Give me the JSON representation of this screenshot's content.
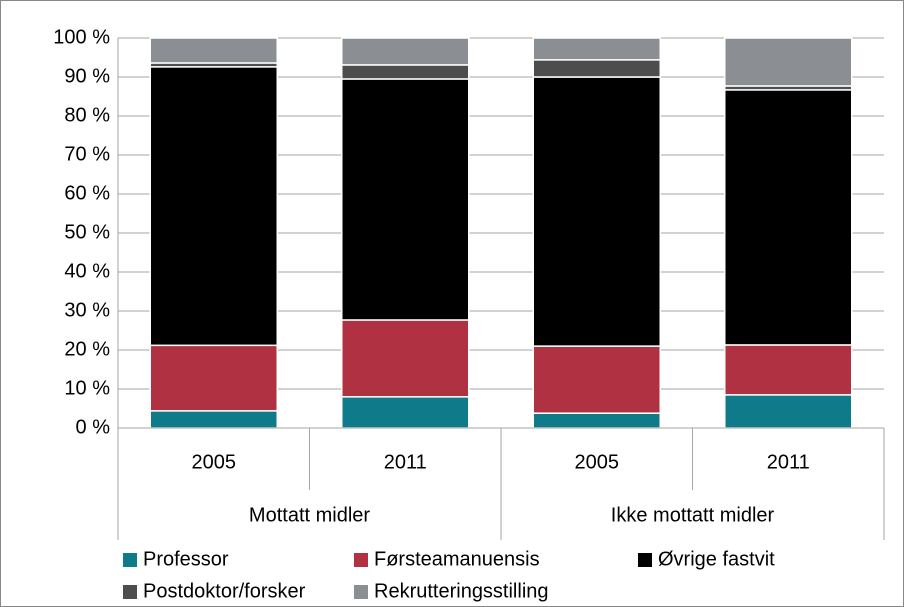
{
  "chart_data": {
    "type": "stacked_bar",
    "categories": [
      "2005",
      "2011",
      "2005",
      "2011"
    ],
    "groups": [
      {
        "label": "Mottatt midler",
        "span": 2
      },
      {
        "label": "Ikke mottatt midler",
        "span": 2
      }
    ],
    "series": [
      {
        "name": "Professor",
        "color": "#0f7b8a",
        "values": [
          4.4,
          8.0,
          3.8,
          8.5
        ]
      },
      {
        "name": "Førsteamanuensis",
        "color": "#b03242",
        "values": [
          16.8,
          19.7,
          17.2,
          12.8
        ]
      },
      {
        "name": "Øvrige fastvit",
        "color": "#000000",
        "values": [
          71.4,
          61.8,
          69.0,
          65.4
        ]
      },
      {
        "name": "Postdoktor/forsker",
        "color": "#4d4d4d",
        "values": [
          1.0,
          3.6,
          4.4,
          1.0
        ]
      },
      {
        "name": "Rekrutteringsstilling",
        "color": "#8b8f94",
        "values": [
          6.4,
          6.9,
          5.6,
          12.3
        ]
      }
    ],
    "ylim": [
      0,
      100
    ],
    "yticks": [
      {
        "value": 0,
        "label": "0 %"
      },
      {
        "value": 10,
        "label": "10 %"
      },
      {
        "value": 20,
        "label": "20 %"
      },
      {
        "value": 30,
        "label": "30 %"
      },
      {
        "value": 40,
        "label": "40 %"
      },
      {
        "value": 50,
        "label": "50 %"
      },
      {
        "value": 60,
        "label": "60 %"
      },
      {
        "value": 70,
        "label": "70 %"
      },
      {
        "value": 80,
        "label": "80 %"
      },
      {
        "value": 90,
        "label": "90 %"
      },
      {
        "value": 100,
        "label": "100 %"
      }
    ],
    "grid": true,
    "legend": "bottom"
  }
}
